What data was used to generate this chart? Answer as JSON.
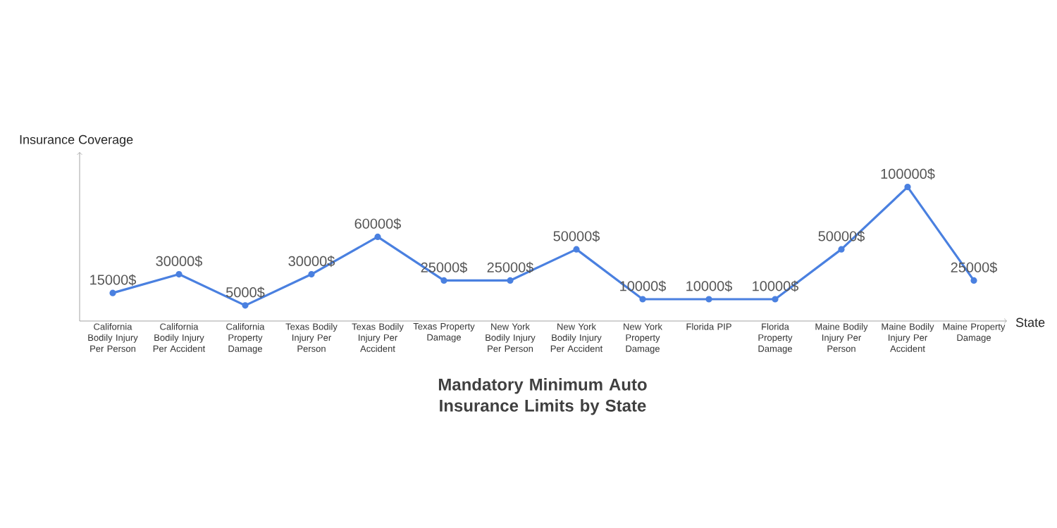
{
  "chart_data": {
    "type": "line",
    "title": "Mandatory Minimum Auto Insurance Limits by State",
    "xlabel": "State",
    "ylabel": "Insurance Coverage",
    "categories": [
      "California Bodily Injury Per Person",
      "California Bodily Injury Per Accident",
      "California Property Damage",
      "Texas Bodily Injury Per Person",
      "Texas Bodily Injury Per Accident",
      "Texas Property Damage",
      "New York Bodily Injury Per Person",
      "New York Bodily Injury Per Accident",
      "New York Property Damage",
      "Florida PIP",
      "Florida Property Damage",
      "Maine Bodily Injury Per Person",
      "Maine Bodily Injury Per Accident",
      "Maine Property Damage"
    ],
    "values": [
      15000,
      30000,
      5000,
      30000,
      60000,
      25000,
      25000,
      50000,
      10000,
      10000,
      10000,
      50000,
      100000,
      25000
    ],
    "value_labels": [
      "15000$",
      "30000$",
      "5000$",
      "30000$",
      "60000$",
      "25000$",
      "25000$",
      "50000$",
      "10000$",
      "10000$",
      "10000$",
      "50000$",
      "100000$",
      "25000$"
    ],
    "color": "#4a80e0",
    "marker": "circle",
    "line_style": "solid"
  }
}
